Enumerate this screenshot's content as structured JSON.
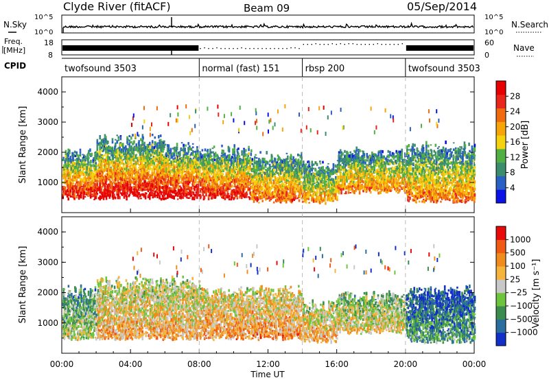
{
  "header": {
    "title": "Clyde River (fitACF)",
    "beam": "Beam 09",
    "date": "05/Sep/2014"
  },
  "nsky": {
    "label": "N.Sky",
    "tick_top": "10^5",
    "tick_bottom": "10^0",
    "right_label": "N.Search",
    "right_tick_top": "10^5",
    "right_tick_bottom": "10^0"
  },
  "freq": {
    "label_line1": "Freq.",
    "label_line2": "[MHz]",
    "tick_top": "18",
    "tick_bottom": "8",
    "right_label": "Nave",
    "right_tick_top": "60",
    "right_tick_bottom": "0"
  },
  "cpid": {
    "label": "CPID",
    "segments": [
      {
        "name": "twofsound 3503",
        "start_h": 0
      },
      {
        "name": "normal (fast) 151",
        "start_h": 8
      },
      {
        "name": "rbsp 200",
        "start_h": 14
      },
      {
        "name": "twofsound 3503",
        "start_h": 20
      }
    ]
  },
  "colors": {
    "power_scale": [
      "#0a12e6",
      "#2a5fc4",
      "#3c8c6e",
      "#50b043",
      "#f5d20f",
      "#f5a50a",
      "#f06a0f",
      "#e8261c",
      "#e60000"
    ],
    "velocity_scale": [
      "#1230c8",
      "#2a6ea0",
      "#3c8c50",
      "#6ec43c",
      "#c8c8c8",
      "#f5b43c",
      "#f08c1e",
      "#f05a14",
      "#e60a0a"
    ]
  },
  "chart_data": [
    {
      "type": "heatmap",
      "name": "power",
      "ylabel": "Slant Range [km]",
      "ylim": [
        0,
        4500
      ],
      "yticks": [
        1000,
        2000,
        3000,
        4000
      ],
      "xlim": [
        0,
        24
      ],
      "colorbar": {
        "label": "Power [dB]",
        "ticks": [
          "4",
          "8",
          "12",
          "16",
          "20",
          "24",
          "28"
        ],
        "min": 0,
        "max": 32
      },
      "scatter_regions": [
        {
          "t0": 0.0,
          "t1": 2.0,
          "r0": 400,
          "r1": 2100,
          "level": 0.55
        },
        {
          "t0": 2.0,
          "t1": 6.0,
          "r0": 400,
          "r1": 2600,
          "level": 0.6
        },
        {
          "t0": 6.0,
          "t1": 8.0,
          "r0": 400,
          "r1": 2300,
          "level": 0.6
        },
        {
          "t0": 8.0,
          "t1": 11.0,
          "r0": 400,
          "r1": 2200,
          "level": 0.55
        },
        {
          "t0": 11.0,
          "t1": 14.0,
          "r0": 300,
          "r1": 2000,
          "level": 0.45
        },
        {
          "t0": 14.0,
          "t1": 16.0,
          "r0": 250,
          "r1": 1700,
          "level": 0.35
        },
        {
          "t0": 16.0,
          "t1": 20.0,
          "r0": 600,
          "r1": 2100,
          "level": 0.4
        },
        {
          "t0": 20.0,
          "t1": 24.0,
          "r0": 300,
          "r1": 2300,
          "level": 0.4
        }
      ]
    },
    {
      "type": "heatmap",
      "name": "velocity",
      "ylabel": "Slant Range [km]",
      "xlabel": "Time UT",
      "ylim": [
        0,
        4500
      ],
      "yticks": [
        1000,
        2000,
        3000,
        4000
      ],
      "xlim": [
        0,
        24
      ],
      "xticks": [
        "00:00",
        "04:00",
        "08:00",
        "12:00",
        "16:00",
        "20:00",
        "00:00"
      ],
      "colorbar": {
        "label": "Velocity [m s⁻¹]",
        "ticks": [
          "1000",
          "500",
          "100",
          "25",
          "−25",
          "−100",
          "−500",
          "−1000"
        ]
      },
      "scatter_regions": [
        {
          "t0": 0.0,
          "t1": 2.0,
          "r0": 400,
          "r1": 2200,
          "level": 0.5
        },
        {
          "t0": 2.0,
          "t1": 8.0,
          "r0": 400,
          "r1": 2500,
          "level": 0.7
        },
        {
          "t0": 8.0,
          "t1": 14.0,
          "r0": 400,
          "r1": 2200,
          "level": 0.75
        },
        {
          "t0": 14.0,
          "t1": 16.0,
          "r0": 300,
          "r1": 1700,
          "level": 0.7
        },
        {
          "t0": 16.0,
          "t1": 20.0,
          "r0": 600,
          "r1": 2000,
          "level": 0.6
        },
        {
          "t0": 20.0,
          "t1": 24.0,
          "r0": 300,
          "r1": 2200,
          "level": 0.3
        }
      ]
    }
  ]
}
